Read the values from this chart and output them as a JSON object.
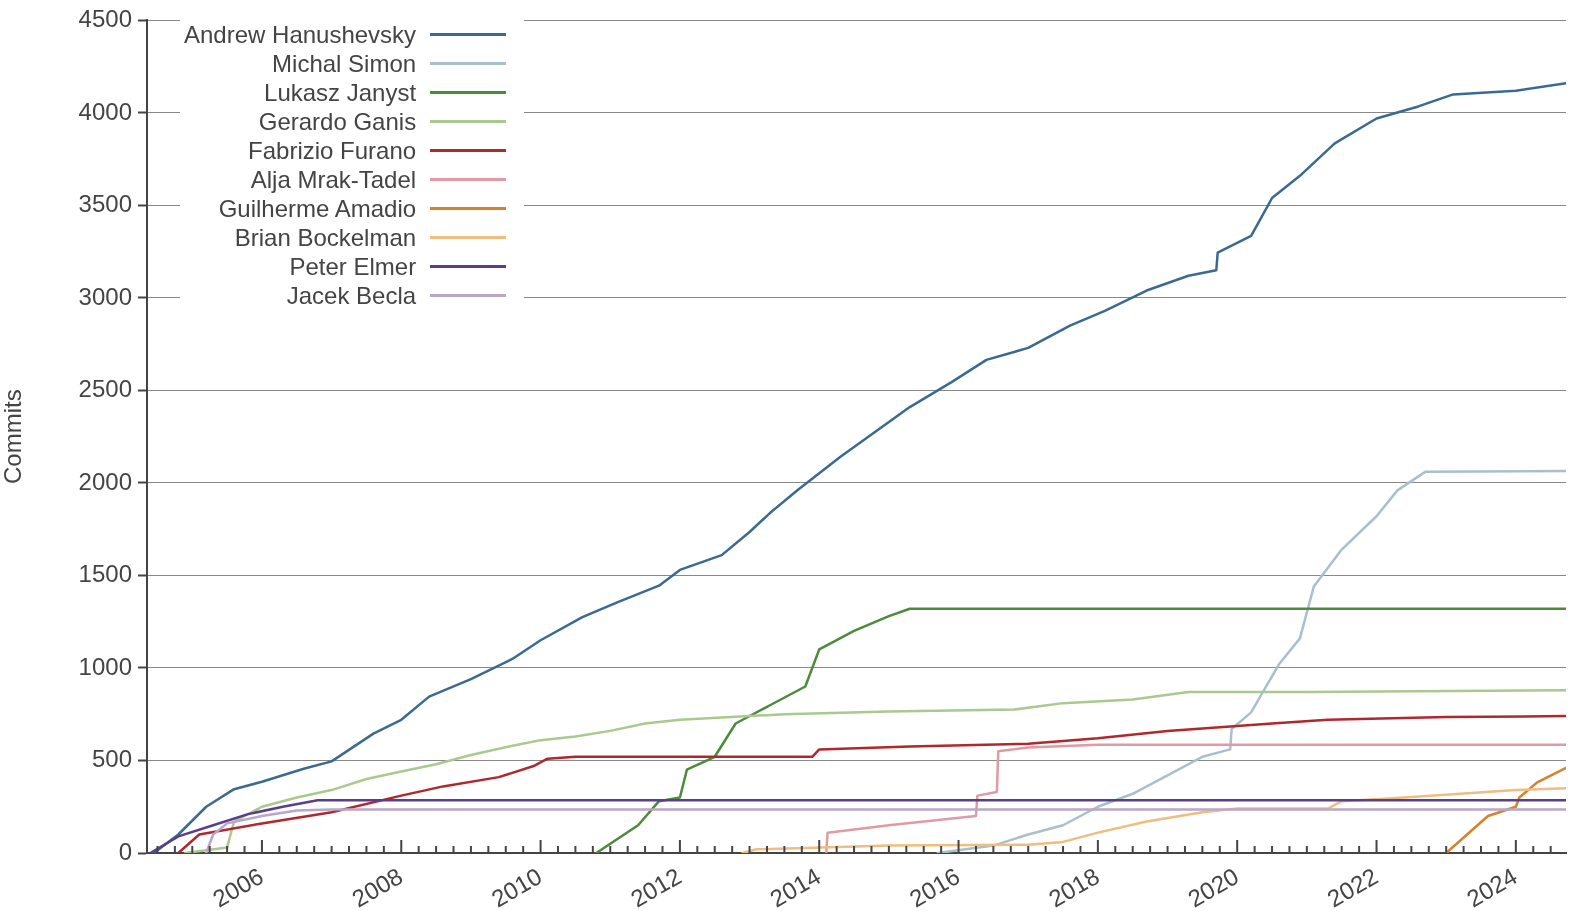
{
  "chart_data": {
    "type": "line",
    "ylabel": "Commits",
    "xlim": [
      2004.35,
      2024.72
    ],
    "ylim": [
      0,
      4500
    ],
    "yticks": [
      0,
      500,
      1000,
      1500,
      2000,
      2500,
      3000,
      3500,
      4000,
      4500
    ],
    "xticks": [
      {
        "value": 2004.5,
        "label": null
      },
      {
        "value": 2004.75,
        "label": null
      },
      {
        "value": 2005,
        "label": null
      },
      {
        "value": 2005.25,
        "label": null
      },
      {
        "value": 2005.5,
        "label": null
      },
      {
        "value": 2005.75,
        "label": null
      },
      2006,
      {
        "value": 2006.25,
        "label": null
      },
      {
        "value": 2006.5,
        "label": null
      },
      {
        "value": 2006.75,
        "label": null
      },
      {
        "value": 2007,
        "label": null
      },
      {
        "value": 2007.25,
        "label": null
      },
      {
        "value": 2007.5,
        "label": null
      },
      {
        "value": 2007.75,
        "label": null
      },
      2008,
      {
        "value": 2008.25,
        "label": null
      },
      {
        "value": 2008.5,
        "label": null
      },
      {
        "value": 2008.75,
        "label": null
      },
      {
        "value": 2009,
        "label": null
      },
      {
        "value": 2009.25,
        "label": null
      },
      {
        "value": 2009.5,
        "label": null
      },
      {
        "value": 2009.75,
        "label": null
      },
      2010,
      {
        "value": 2010.25,
        "label": null
      },
      {
        "value": 2010.5,
        "label": null
      },
      {
        "value": 2010.75,
        "label": null
      },
      {
        "value": 2011,
        "label": null
      },
      {
        "value": 2011.25,
        "label": null
      },
      {
        "value": 2011.5,
        "label": null
      },
      {
        "value": 2011.75,
        "label": null
      },
      2012,
      {
        "value": 2012.25,
        "label": null
      },
      {
        "value": 2012.5,
        "label": null
      },
      {
        "value": 2012.75,
        "label": null
      },
      {
        "value": 2013,
        "label": null
      },
      {
        "value": 2013.25,
        "label": null
      },
      {
        "value": 2013.5,
        "label": null
      },
      {
        "value": 2013.75,
        "label": null
      },
      2014,
      {
        "value": 2014.25,
        "label": null
      },
      {
        "value": 2014.5,
        "label": null
      },
      {
        "value": 2014.75,
        "label": null
      },
      {
        "value": 2015,
        "label": null
      },
      {
        "value": 2015.25,
        "label": null
      },
      {
        "value": 2015.5,
        "label": null
      },
      {
        "value": 2015.75,
        "label": null
      },
      2016,
      {
        "value": 2016.25,
        "label": null
      },
      {
        "value": 2016.5,
        "label": null
      },
      {
        "value": 2016.75,
        "label": null
      },
      {
        "value": 2017,
        "label": null
      },
      {
        "value": 2017.25,
        "label": null
      },
      {
        "value": 2017.5,
        "label": null
      },
      {
        "value": 2017.75,
        "label": null
      },
      2018,
      {
        "value": 2018.25,
        "label": null
      },
      {
        "value": 2018.5,
        "label": null
      },
      {
        "value": 2018.75,
        "label": null
      },
      {
        "value": 2019,
        "label": null
      },
      {
        "value": 2019.25,
        "label": null
      },
      {
        "value": 2019.5,
        "label": null
      },
      {
        "value": 2019.75,
        "label": null
      },
      2020,
      {
        "value": 2020.25,
        "label": null
      },
      {
        "value": 2020.5,
        "label": null
      },
      {
        "value": 2020.75,
        "label": null
      },
      {
        "value": 2021,
        "label": null
      },
      {
        "value": 2021.25,
        "label": null
      },
      {
        "value": 2021.5,
        "label": null
      },
      {
        "value": 2021.75,
        "label": null
      },
      2022,
      {
        "value": 2022.25,
        "label": null
      },
      {
        "value": 2022.5,
        "label": null
      },
      {
        "value": 2022.75,
        "label": null
      },
      {
        "value": 2023,
        "label": null
      },
      {
        "value": 2023.25,
        "label": null
      },
      {
        "value": 2023.5,
        "label": null
      },
      {
        "value": 2023.75,
        "label": null
      },
      2024,
      {
        "value": 2024.25,
        "label": null
      },
      {
        "value": 2024.5,
        "label": null
      }
    ],
    "grid": "y",
    "legend": "top left",
    "marker": "none",
    "line_style": "solid",
    "series": [
      {
        "name": "Andrew Hanushevsky",
        "color": "#3b6a91",
        "x": [
          2004.45,
          2004.8,
          2005.2,
          2005.6,
          2006,
          2006.6,
          2007,
          2007.6,
          2008,
          2008.4,
          2009,
          2009.6,
          2010,
          2010.6,
          2011.1,
          2011.7,
          2012,
          2012.6,
          2013,
          2013.3,
          2013.7,
          2014.3,
          2014.8,
          2015.3,
          2015.9,
          2016.4,
          2017,
          2017.6,
          2018.1,
          2018.7,
          2019.3,
          2019.7,
          2019.72,
          2020.2,
          2020.5,
          2020.9,
          2021.4,
          2022,
          2022.6,
          2023.1,
          2024,
          2024.72
        ],
        "values": [
          0,
          100,
          250,
          345,
          385,
          455,
          495,
          645,
          720,
          845,
          940,
          1050,
          1150,
          1275,
          1355,
          1445,
          1530,
          1610,
          1735,
          1840,
          1965,
          2140,
          2275,
          2410,
          2545,
          2665,
          2730,
          2850,
          2930,
          3040,
          3120,
          3150,
          3245,
          3335,
          3540,
          3660,
          3835,
          3970,
          4035,
          4100,
          4120,
          4160
        ]
      },
      {
        "name": "Michal Simon",
        "color": "#a9c0cc",
        "x": [
          2015.7,
          2016.5,
          2017,
          2017.5,
          2018,
          2018.5,
          2019,
          2019.5,
          2019.9,
          2019.92,
          2020.2,
          2020.6,
          2020.9,
          2021,
          2021.1,
          2021.5,
          2022,
          2022.3,
          2022.7,
          2024.72
        ],
        "values": [
          0,
          40,
          100,
          150,
          250,
          320,
          420,
          520,
          560,
          670,
          760,
          1020,
          1160,
          1300,
          1440,
          1640,
          1820,
          1960,
          2060,
          2065
        ]
      },
      {
        "name": "Lukasz Janyst",
        "color": "#4b8b3b",
        "x": [
          2010.8,
          2011.4,
          2011.7,
          2012,
          2012.1,
          2012.5,
          2012.8,
          2013.3,
          2013.8,
          2014,
          2014.5,
          2015,
          2015.3,
          2024.72
        ],
        "values": [
          0,
          150,
          280,
          300,
          450,
          520,
          700,
          800,
          900,
          1100,
          1200,
          1280,
          1320,
          1320
        ]
      },
      {
        "name": "Gerardo Ganis",
        "color": "#a9c98e",
        "x": [
          2004.9,
          2005.5,
          2005.6,
          2006,
          2006.5,
          2007,
          2007.5,
          2008,
          2008.5,
          2009,
          2009.6,
          2010,
          2010.5,
          2011,
          2011.5,
          2012,
          2013,
          2013.5,
          2015,
          2016.8,
          2017.5,
          2018.5,
          2019.3,
          2021,
          2024.72
        ],
        "values": [
          0,
          30,
          170,
          250,
          300,
          340,
          400,
          440,
          480,
          530,
          580,
          610,
          630,
          660,
          700,
          720,
          740,
          750,
          765,
          775,
          810,
          830,
          870,
          870,
          880
        ]
      },
      {
        "name": "Fabrizio Furano",
        "color": "#b0282d",
        "x": [
          2004.8,
          2005.1,
          2006,
          2007,
          2008,
          2008.6,
          2009.4,
          2009.9,
          2010.1,
          2010.5,
          2013.9,
          2014,
          2015.3,
          2017,
          2018,
          2019,
          2020.5,
          2021.3,
          2023,
          2024.72
        ],
        "values": [
          0,
          100,
          160,
          220,
          310,
          360,
          410,
          470,
          510,
          520,
          520,
          560,
          575,
          590,
          620,
          660,
          700,
          720,
          735,
          740
        ]
      },
      {
        "name": "Alja Mrak-Tadel",
        "color": "#e09aa3",
        "x": [
          2014.1,
          2014.12,
          2015,
          2016.25,
          2016.27,
          2016.55,
          2016.57,
          2017,
          2018,
          2024.72
        ],
        "values": [
          0,
          110,
          150,
          200,
          310,
          330,
          550,
          570,
          585,
          585
        ]
      },
      {
        "name": "Guilherme Amadio",
        "color": "#d8802a",
        "x": [
          2023,
          2023.3,
          2023.6,
          2024,
          2024.05,
          2024.3,
          2024.72
        ],
        "values": [
          0,
          100,
          200,
          250,
          300,
          380,
          460
        ]
      },
      {
        "name": "Brian Bockelman",
        "color": "#efbd7e",
        "x": [
          2012.9,
          2013.1,
          2015,
          2017,
          2017.5,
          2018,
          2018.7,
          2019.5,
          2020,
          2021.3,
          2021.5,
          2022.4,
          2023.2,
          2024,
          2024.72
        ],
        "values": [
          0,
          20,
          40,
          45,
          60,
          110,
          170,
          220,
          240,
          240,
          280,
          300,
          320,
          340,
          350
        ]
      },
      {
        "name": "Peter Elmer",
        "color": "#5a3e8c",
        "x": [
          2004.4,
          2004.8,
          2005.3,
          2005.8,
          2006.3,
          2006.8,
          2024.72
        ],
        "values": [
          0,
          90,
          150,
          210,
          250,
          285,
          285
        ]
      },
      {
        "name": "Jacek Becla",
        "color": "#b9a6c8",
        "x": [
          2005.2,
          2005.3,
          2005.5,
          2006,
          2006.5,
          2007,
          2024.72
        ],
        "values": [
          0,
          100,
          160,
          200,
          230,
          235,
          235
        ]
      }
    ]
  }
}
